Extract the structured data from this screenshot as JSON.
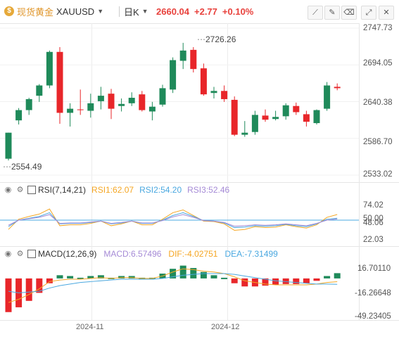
{
  "header": {
    "coin_glyph": "$",
    "instrument_name": "现货黄金",
    "symbol": "XAUUSD",
    "interval": "日K",
    "last_price": "2660.04",
    "change": "+2.77",
    "change_pct": "+0.10%",
    "toolbar_icons": [
      "draw-line-icon",
      "pencil-icon",
      "eraser-icon",
      "fullscreen-icon",
      "close-icon"
    ]
  },
  "price_axis": {
    "ticks": [
      "2747.73",
      "2694.05",
      "2640.38",
      "2586.70",
      "2533.02"
    ],
    "tick_values": [
      2747.73,
      2694.05,
      2640.38,
      2586.7,
      2533.02
    ],
    "high_annotation": "2726.26",
    "low_annotation": "2554.49"
  },
  "rsi": {
    "title": "RSI(7,14,21)",
    "rsi1": "RSI1:62.07",
    "rsi2": "RSI2:54.20",
    "rsi3": "RSI3:52.46",
    "ticks": [
      "74.02",
      "50.00",
      "48.06",
      "22.03"
    ],
    "colors": {
      "rsi1": "#f5a623",
      "rsi2": "#4aa8e0",
      "rsi3": "#a58ad6"
    }
  },
  "macd": {
    "title": "MACD(12,26,9)",
    "macd": "MACD:6.57496",
    "dif": "DIF:-4.02751",
    "dea": "DEA:-7.31499",
    "ticks": [
      "16.70110",
      "-16.26648",
      "-49.23405"
    ],
    "colors": {
      "macd": "#a58ad6",
      "dif": "#f5a623",
      "dea": "#4aa8e0"
    }
  },
  "x_axis": {
    "labels": [
      "2024-11",
      "2024-12"
    ]
  },
  "colors": {
    "up": "#1f8a5a",
    "down": "#e8262a",
    "brand": "#e0962b"
  },
  "chart_data": {
    "type": "candlestick",
    "ylim": [
      2533.02,
      2747.73
    ],
    "candles": [
      {
        "o": 2557,
        "h": 2595,
        "l": 2554.49,
        "c": 2595
      },
      {
        "o": 2613,
        "h": 2631,
        "l": 2607,
        "c": 2628
      },
      {
        "o": 2628,
        "h": 2646,
        "l": 2621,
        "c": 2644
      },
      {
        "o": 2649,
        "h": 2666,
        "l": 2640,
        "c": 2664
      },
      {
        "o": 2664,
        "h": 2715,
        "l": 2660,
        "c": 2713
      },
      {
        "o": 2713,
        "h": 2720,
        "l": 2608,
        "c": 2624
      },
      {
        "o": 2624,
        "h": 2638,
        "l": 2604,
        "c": 2630
      },
      {
        "o": 2629,
        "h": 2658,
        "l": 2621,
        "c": 2628
      },
      {
        "o": 2627,
        "h": 2652,
        "l": 2617,
        "c": 2638
      },
      {
        "o": 2641,
        "h": 2662,
        "l": 2629,
        "c": 2649
      },
      {
        "o": 2652,
        "h": 2659,
        "l": 2615,
        "c": 2630
      },
      {
        "o": 2634,
        "h": 2645,
        "l": 2626,
        "c": 2637
      },
      {
        "o": 2638,
        "h": 2654,
        "l": 2634,
        "c": 2646
      },
      {
        "o": 2651,
        "h": 2656,
        "l": 2626,
        "c": 2628
      },
      {
        "o": 2626,
        "h": 2640,
        "l": 2613,
        "c": 2633
      },
      {
        "o": 2636,
        "h": 2665,
        "l": 2633,
        "c": 2660
      },
      {
        "o": 2658,
        "h": 2705,
        "l": 2653,
        "c": 2701
      },
      {
        "o": 2700,
        "h": 2726.26,
        "l": 2688,
        "c": 2715
      },
      {
        "o": 2716,
        "h": 2720,
        "l": 2683,
        "c": 2688
      },
      {
        "o": 2689,
        "h": 2696,
        "l": 2649,
        "c": 2651
      },
      {
        "o": 2653,
        "h": 2662,
        "l": 2645,
        "c": 2656
      },
      {
        "o": 2656,
        "h": 2664,
        "l": 2640,
        "c": 2644
      },
      {
        "o": 2643,
        "h": 2648,
        "l": 2590,
        "c": 2592
      },
      {
        "o": 2592,
        "h": 2612,
        "l": 2589,
        "c": 2595
      },
      {
        "o": 2596,
        "h": 2627,
        "l": 2592,
        "c": 2621
      },
      {
        "o": 2620,
        "h": 2629,
        "l": 2611,
        "c": 2614
      },
      {
        "o": 2615,
        "h": 2627,
        "l": 2613,
        "c": 2618
      },
      {
        "o": 2619,
        "h": 2638,
        "l": 2614,
        "c": 2635
      },
      {
        "o": 2634,
        "h": 2639,
        "l": 2621,
        "c": 2625
      },
      {
        "o": 2622,
        "h": 2627,
        "l": 2604,
        "c": 2611
      },
      {
        "o": 2609,
        "h": 2629,
        "l": 2607,
        "c": 2628
      },
      {
        "o": 2630,
        "h": 2669,
        "l": 2627,
        "c": 2664
      },
      {
        "o": 2662,
        "h": 2667,
        "l": 2657,
        "c": 2660.04
      }
    ],
    "rsi_series": [
      {
        "name": "RSI1",
        "values": [
          30,
          52,
          58,
          63,
          74,
          38,
          40,
          40,
          43,
          48,
          38,
          42,
          48,
          40,
          40,
          52,
          66,
          72,
          60,
          48,
          47,
          42,
          28,
          30,
          36,
          34,
          35,
          40,
          36,
          33,
          40,
          56,
          62.07
        ]
      },
      {
        "name": "RSI2",
        "values": [
          36,
          50,
          54,
          58,
          66,
          42,
          43,
          43,
          45,
          48,
          42,
          44,
          48,
          43,
          43,
          50,
          60,
          66,
          58,
          49,
          48,
          44,
          34,
          35,
          38,
          37,
          38,
          41,
          38,
          36,
          42,
          52,
          54.2
        ]
      },
      {
        "name": "RSI3",
        "values": [
          39,
          50,
          53,
          56,
          62,
          43,
          44,
          44,
          46,
          48,
          43,
          45,
          48,
          44,
          44,
          49,
          57,
          62,
          56,
          49,
          48,
          45,
          37,
          38,
          40,
          39,
          40,
          42,
          40,
          38,
          43,
          50,
          52.46
        ]
      }
    ],
    "macd_hist": [
      -42,
      -36,
      -28,
      -18,
      -6,
      4,
      3,
      2,
      3,
      4,
      2,
      3,
      3,
      2,
      2,
      6,
      12,
      16,
      13,
      8,
      4,
      2,
      -6,
      -10,
      -10,
      -9,
      -8,
      -7,
      -7,
      -6,
      -3,
      3,
      6.57496
    ],
    "dif": [
      -30,
      -26,
      -20,
      -13,
      -4,
      -2,
      -1,
      -1,
      0,
      1,
      0,
      1,
      1,
      0,
      0,
      3,
      8,
      12,
      11,
      9,
      8,
      6,
      2,
      -3,
      -5,
      -7,
      -8,
      -8,
      -8,
      -8,
      -7,
      -5,
      -4.02751
    ],
    "dea": [
      -16,
      -18,
      -17,
      -16,
      -12,
      -9,
      -7,
      -5,
      -4,
      -3,
      -2,
      -1,
      -1,
      -1,
      -1,
      0,
      2,
      4,
      5,
      6,
      6,
      6,
      5,
      3,
      1,
      -1,
      -3,
      -4,
      -5,
      -6,
      -7,
      -7,
      -7.31499
    ]
  }
}
